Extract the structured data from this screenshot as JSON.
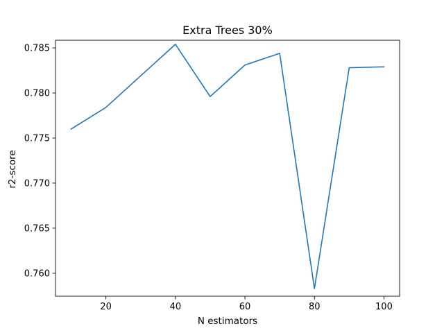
{
  "chart_data": {
    "type": "line",
    "title": "Extra Trees 30%",
    "xlabel": "N estimators",
    "ylabel": "r2-score",
    "xlim": [
      5.5,
      104.5
    ],
    "ylim": [
      0.75745,
      0.78585
    ],
    "x_ticks": [
      20,
      40,
      60,
      80,
      100
    ],
    "x_tick_labels": [
      "20",
      "40",
      "60",
      "80",
      "100"
    ],
    "y_ticks": [
      0.76,
      0.765,
      0.77,
      0.775,
      0.78,
      0.785
    ],
    "y_tick_labels": [
      "0.760",
      "0.765",
      "0.770",
      "0.775",
      "0.780",
      "0.785"
    ],
    "grid": false,
    "series": [
      {
        "color": "#1f77b4",
        "x": [
          10,
          20,
          30,
          40,
          50,
          60,
          70,
          80,
          90,
          100
        ],
        "values": [
          0.776,
          0.7784,
          0.7819,
          0.7854,
          0.7796,
          0.7831,
          0.7844,
          0.7583,
          0.7828,
          0.7829
        ]
      }
    ]
  }
}
